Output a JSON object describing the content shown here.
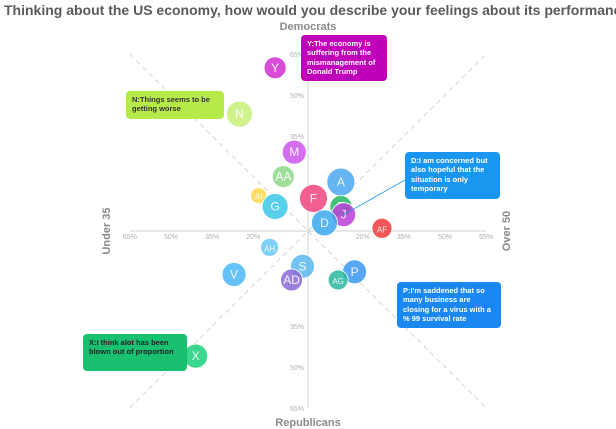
{
  "chart_data": {
    "type": "scatter",
    "title": "Thinking about the US economy, how would you describe your feelings about its performance?",
    "axes": {
      "top": "Democrats",
      "bottom": "Republicans",
      "left": "Under 35",
      "right": "Over 50"
    },
    "x_ticks": [
      "65%",
      "50%",
      "35%",
      "20%",
      "20%",
      "35%",
      "50%",
      "65%"
    ],
    "y_ticks": [
      "65%",
      "50%",
      "35%",
      "35%",
      "50%",
      "65%"
    ],
    "x_tick_values": [
      -65,
      -50,
      -35,
      -20,
      20,
      35,
      50,
      65
    ],
    "y_tick_values": [
      65,
      50,
      35,
      -35,
      -50,
      -65
    ],
    "xlim": [
      -65,
      65
    ],
    "ylim": [
      -65,
      65
    ],
    "grid": false,
    "points": [
      {
        "label": "Y",
        "x": -12,
        "y": 60,
        "r": 11,
        "color": "#d12ed1"
      },
      {
        "label": "N",
        "x": -25,
        "y": 43,
        "r": 13,
        "color": "#c8f07a"
      },
      {
        "label": "M",
        "x": -5,
        "y": 29,
        "r": 12,
        "color": "#cc55ee"
      },
      {
        "label": "AA",
        "x": -9,
        "y": 20,
        "r": 11,
        "color": "#8fd88a"
      },
      {
        "label": "A",
        "x": 12,
        "y": 18,
        "r": 14,
        "color": "#4aa8f0"
      },
      {
        "label": "F",
        "x": 2,
        "y": 12,
        "r": 14,
        "color": "#f0457f"
      },
      {
        "label": "AI",
        "x": -18,
        "y": 13,
        "r": 8,
        "color": "#ffd84a"
      },
      {
        "label": "G",
        "x": -12,
        "y": 9,
        "r": 13,
        "color": "#3cc8e8"
      },
      {
        "label": "E",
        "x": 12,
        "y": 9,
        "r": 11,
        "color": "#22b860"
      },
      {
        "label": "J",
        "x": 13,
        "y": 6,
        "r": 12,
        "color": "#bb40d8"
      },
      {
        "label": "D",
        "x": 6,
        "y": 3,
        "r": 13,
        "color": "#3aa8f0"
      },
      {
        "label": "AF",
        "x": 27,
        "y": 1,
        "r": 10,
        "color": "#f03a3a"
      },
      {
        "label": "AH",
        "x": -14,
        "y": -6,
        "r": 9,
        "color": "#66c8f8"
      },
      {
        "label": "S",
        "x": -2,
        "y": -13,
        "r": 12,
        "color": "#5ab8f0"
      },
      {
        "label": "P",
        "x": 17,
        "y": -15,
        "r": 12,
        "color": "#3a98f0"
      },
      {
        "label": "V",
        "x": -27,
        "y": -16,
        "r": 12,
        "color": "#4ab8f8"
      },
      {
        "label": "AD",
        "x": -6,
        "y": -18,
        "r": 11,
        "color": "#8a6ad8"
      },
      {
        "label": "AG",
        "x": 11,
        "y": -18,
        "r": 10,
        "color": "#2ab8a0"
      },
      {
        "label": "X",
        "x": -41,
        "y": -46,
        "r": 12,
        "color": "#1ad07a"
      }
    ],
    "annotations": [
      {
        "point": "Y",
        "text": "Y:The economy is suffering from the mismanagement of Donald Trump",
        "color": "#c000b8",
        "text_color": "#ffffff"
      },
      {
        "point": "N",
        "text": "N:Things seems to be getting worse",
        "color": "#b6ea48",
        "text_color": "#333333"
      },
      {
        "point": "D",
        "text": "D:I am concerned but also hopeful that the situation is only temporary",
        "color": "#1a96f0",
        "text_color": "#ffffff"
      },
      {
        "point": "P",
        "text": "P:I'm saddened that so many business are closing for a virus with a % 99 survival rate",
        "color": "#1a88f0",
        "text_color": "#ffffff"
      },
      {
        "point": "X",
        "text": "X:I think alot has been blown out of proportion",
        "color": "#18c070",
        "text_color": "#222222"
      }
    ]
  }
}
